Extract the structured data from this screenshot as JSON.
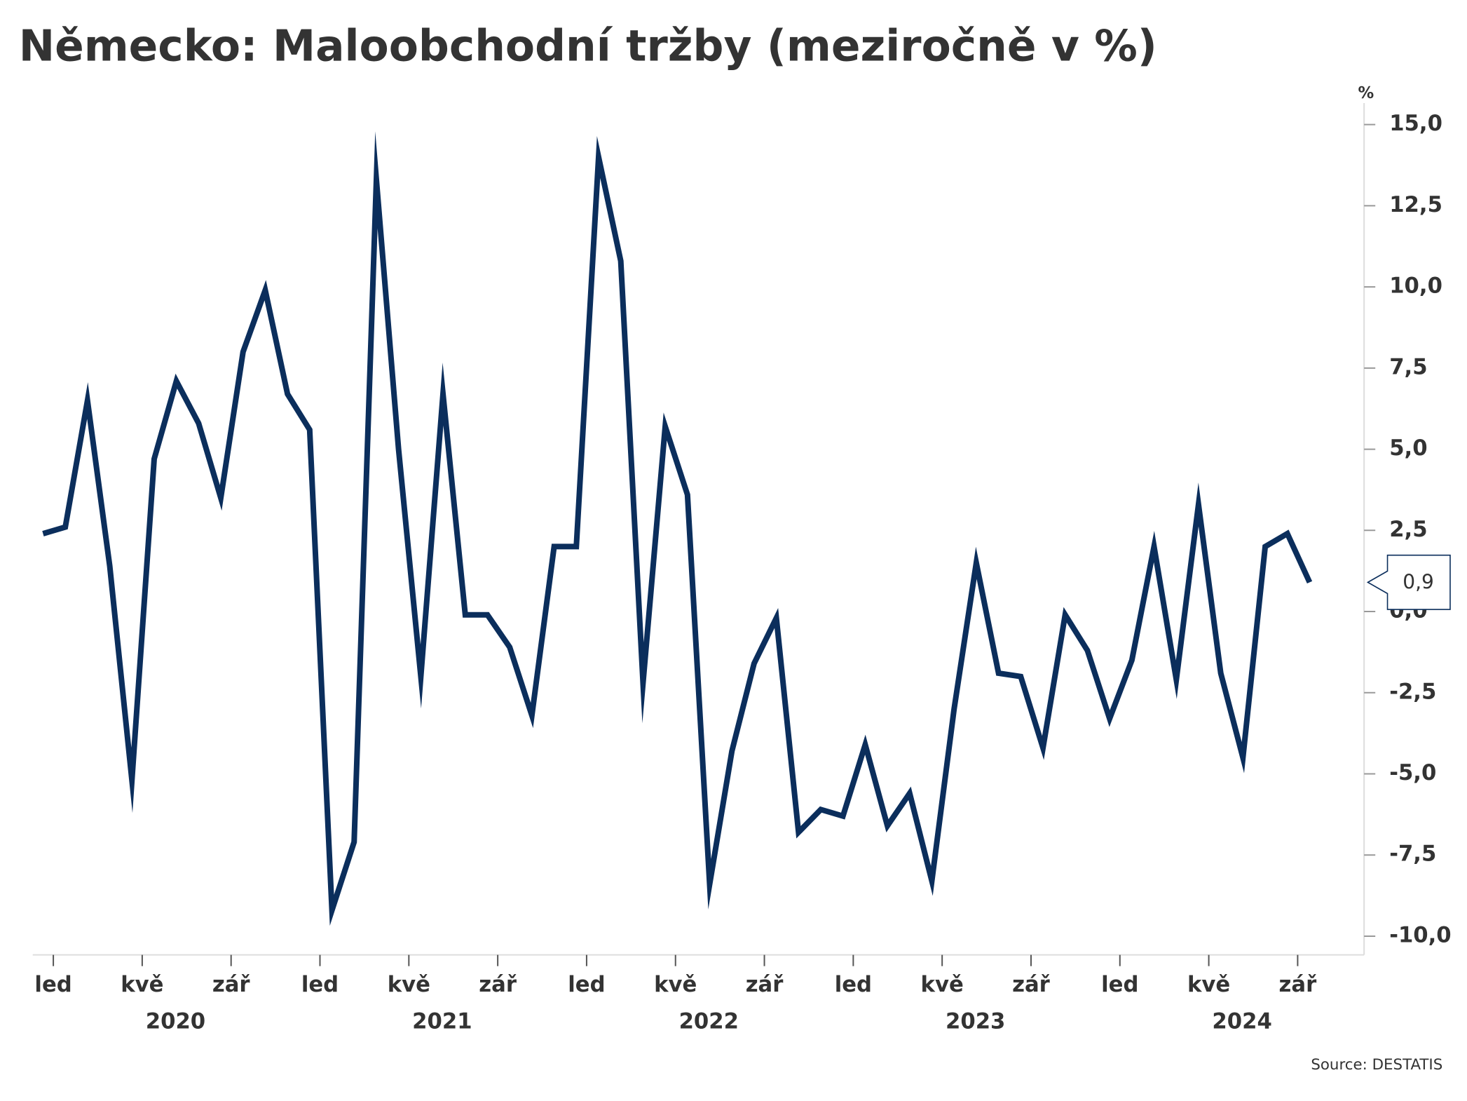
{
  "chart_data": {
    "type": "line",
    "title": "Německo: Maloobchodní tržby (meziročně v %)",
    "y_unit": "%",
    "source": "Source: DESTATIS",
    "categories": [
      "led",
      null,
      null,
      null,
      "kvě",
      null,
      null,
      null,
      "zář",
      null,
      null,
      null,
      "led",
      null,
      null,
      null,
      "kvě",
      null,
      null,
      null,
      "zář",
      null,
      null,
      null,
      "led",
      null,
      null,
      null,
      "kvě",
      null,
      null,
      null,
      "zář",
      null,
      null,
      null,
      "led",
      null,
      null,
      null,
      "kvě",
      null,
      null,
      null,
      "zář",
      null,
      null,
      null,
      "led",
      null,
      null,
      null,
      "kvě",
      null,
      null,
      null,
      "zář",
      null
    ],
    "years": [
      "2020",
      "2021",
      "2022",
      "2023",
      "2024"
    ],
    "series": [
      {
        "name": "Maloobchodní tržby",
        "color": "#0b2e5c",
        "values": [
          2.4,
          2.6,
          6.5,
          1.4,
          -5.2,
          4.7,
          7.1,
          5.8,
          3.5,
          8.0,
          9.9,
          6.7,
          5.6,
          -9.2,
          -7.1,
          13.3,
          5.0,
          -2.0,
          6.7,
          -0.1,
          -0.1,
          -1.1,
          -3.2,
          2.0,
          2.0,
          14.0,
          10.8,
          -2.2,
          5.7,
          3.6,
          -8.4,
          -4.3,
          -1.6,
          -0.2,
          -6.8,
          -6.1,
          -6.3,
          -4.1,
          -6.6,
          -5.6,
          -8.3,
          -3.0,
          1.5,
          -1.9,
          -2.0,
          -4.2,
          -0.1,
          -1.2,
          -3.3,
          -1.5,
          2.0,
          -2.1,
          3.3,
          -1.9,
          -4.5,
          2.0,
          2.4,
          0.9
        ],
        "value_labels": [
          null,
          null,
          null,
          null,
          null,
          null,
          null,
          null,
          null,
          null,
          null,
          null,
          null,
          null,
          null,
          null,
          null,
          null,
          null,
          null,
          null,
          null,
          null,
          null,
          null,
          null,
          null,
          null,
          null,
          null,
          null,
          null,
          null,
          null,
          null,
          null,
          null,
          null,
          null,
          null,
          null,
          null,
          null,
          null,
          null,
          null,
          null,
          null,
          null,
          null,
          null,
          null,
          null,
          null,
          null,
          null,
          null,
          "0,9"
        ]
      }
    ],
    "ylim": [
      -10.9,
      15.7
    ],
    "yticks": [
      {
        "value": -10,
        "label": "-10,0"
      },
      {
        "value": -7.5,
        "label": "-7,5"
      },
      {
        "value": -5,
        "label": "-5,0"
      },
      {
        "value": -2.5,
        "label": "-2,5"
      },
      {
        "value": 0,
        "label": "0,0"
      },
      {
        "value": 2.5,
        "label": "2,5"
      },
      {
        "value": 5,
        "label": "5,0"
      },
      {
        "value": 7.5,
        "label": "7,5"
      },
      {
        "value": 10,
        "label": "10,0"
      },
      {
        "value": 12.5,
        "label": "12,5"
      },
      {
        "value": 15,
        "label": "15,0"
      }
    ],
    "grid": false
  }
}
